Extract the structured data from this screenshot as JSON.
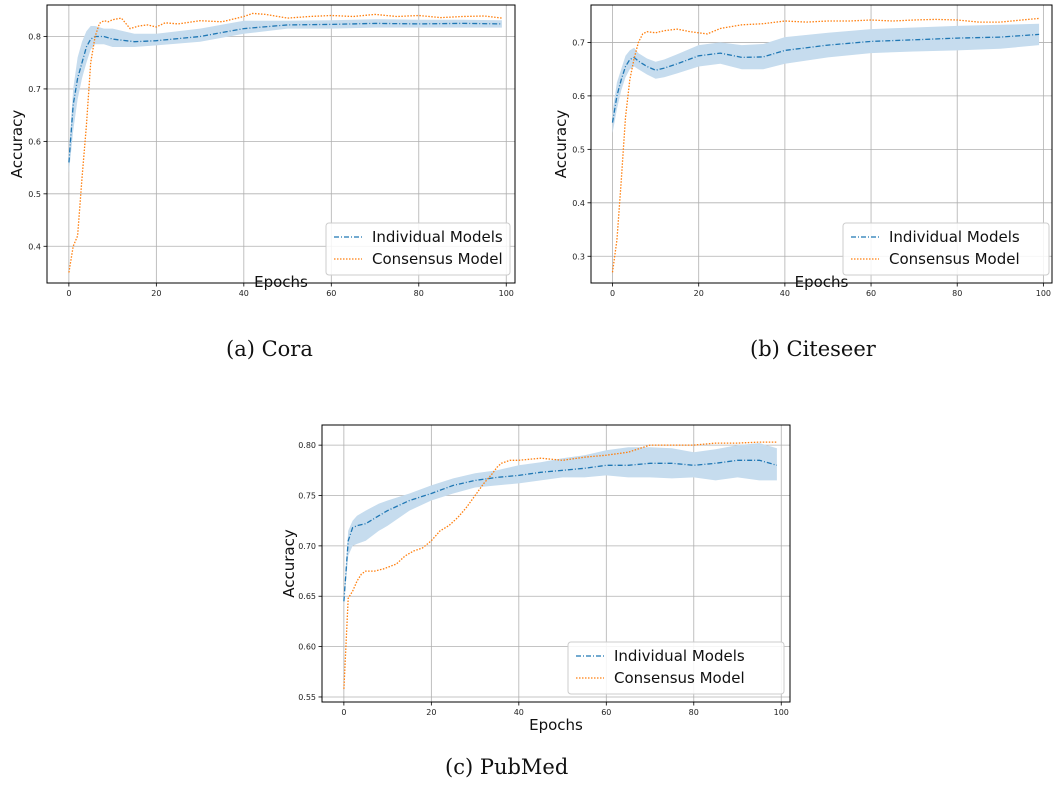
{
  "captions": {
    "cora": "(a) Cora",
    "citeseer": "(b) Citeseer",
    "pubmed": "(c) PubMed"
  },
  "colors": {
    "individual": "#1f77b4",
    "consensus": "#ff7f0e",
    "band": "#c6dcee",
    "grid": "#b0b0b0",
    "axis": "#000000"
  },
  "chart_data": [
    {
      "type": "line",
      "title": "",
      "xlabel": "Epochs",
      "ylabel": "Accuracy",
      "xlim": [
        -5,
        102
      ],
      "ylim": [
        0.33,
        0.86
      ],
      "xticks": [
        0,
        20,
        40,
        60,
        80,
        100
      ],
      "yticks": [
        0.4,
        0.5,
        0.6,
        0.7,
        0.8
      ],
      "ytick_labels": [
        "0.4",
        "0.5",
        "0.6",
        "0.7",
        "0.8"
      ],
      "grid": true,
      "legend": "lower-right",
      "series": [
        {
          "name": "Individual Models",
          "style": "dashdot",
          "points": [
            [
              0,
              0.56
            ],
            [
              1,
              0.67
            ],
            [
              2,
              0.72
            ],
            [
              3,
              0.75
            ],
            [
              4,
              0.78
            ],
            [
              5,
              0.795
            ],
            [
              6,
              0.8
            ],
            [
              8,
              0.8
            ],
            [
              10,
              0.795
            ],
            [
              15,
              0.79
            ],
            [
              20,
              0.792
            ],
            [
              30,
              0.8
            ],
            [
              40,
              0.815
            ],
            [
              50,
              0.822
            ],
            [
              60,
              0.823
            ],
            [
              70,
              0.825
            ],
            [
              80,
              0.824
            ],
            [
              90,
              0.825
            ],
            [
              99,
              0.824
            ]
          ],
          "band": [
            [
              0,
              0.54,
              0.58
            ],
            [
              1,
              0.62,
              0.7
            ],
            [
              2,
              0.68,
              0.76
            ],
            [
              3,
              0.72,
              0.79
            ],
            [
              4,
              0.75,
              0.81
            ],
            [
              5,
              0.775,
              0.82
            ],
            [
              6,
              0.785,
              0.82
            ],
            [
              8,
              0.785,
              0.815
            ],
            [
              10,
              0.78,
              0.815
            ],
            [
              15,
              0.78,
              0.805
            ],
            [
              20,
              0.783,
              0.805
            ],
            [
              30,
              0.79,
              0.815
            ],
            [
              40,
              0.805,
              0.83
            ],
            [
              50,
              0.815,
              0.83
            ],
            [
              60,
              0.815,
              0.831
            ],
            [
              70,
              0.817,
              0.833
            ],
            [
              80,
              0.817,
              0.832
            ],
            [
              90,
              0.817,
              0.832
            ],
            [
              99,
              0.817,
              0.831
            ]
          ]
        },
        {
          "name": "Consensus Model",
          "style": "dotted",
          "points": [
            [
              0,
              0.35
            ],
            [
              1,
              0.4
            ],
            [
              2,
              0.42
            ],
            [
              3,
              0.53
            ],
            [
              4,
              0.63
            ],
            [
              5,
              0.75
            ],
            [
              6,
              0.8
            ],
            [
              7,
              0.825
            ],
            [
              8,
              0.83
            ],
            [
              9,
              0.828
            ],
            [
              10,
              0.832
            ],
            [
              12,
              0.835
            ],
            [
              14,
              0.815
            ],
            [
              16,
              0.82
            ],
            [
              18,
              0.822
            ],
            [
              20,
              0.818
            ],
            [
              22,
              0.826
            ],
            [
              25,
              0.824
            ],
            [
              30,
              0.83
            ],
            [
              35,
              0.828
            ],
            [
              40,
              0.838
            ],
            [
              42,
              0.844
            ],
            [
              45,
              0.842
            ],
            [
              50,
              0.835
            ],
            [
              55,
              0.838
            ],
            [
              60,
              0.84
            ],
            [
              65,
              0.838
            ],
            [
              70,
              0.842
            ],
            [
              75,
              0.838
            ],
            [
              80,
              0.84
            ],
            [
              85,
              0.836
            ],
            [
              90,
              0.838
            ],
            [
              95,
              0.839
            ],
            [
              99,
              0.835
            ]
          ]
        }
      ]
    },
    {
      "type": "line",
      "title": "",
      "xlabel": "Epochs",
      "ylabel": "Accuracy",
      "xlim": [
        -5,
        102
      ],
      "ylim": [
        0.25,
        0.77
      ],
      "xticks": [
        0,
        20,
        40,
        60,
        80,
        100
      ],
      "yticks": [
        0.3,
        0.4,
        0.5,
        0.6,
        0.7
      ],
      "ytick_labels": [
        "0.3",
        "0.4",
        "0.5",
        "0.6",
        "0.7"
      ],
      "grid": true,
      "legend": "lower-right",
      "series": [
        {
          "name": "Individual Models",
          "style": "dashdot",
          "points": [
            [
              0,
              0.55
            ],
            [
              1,
              0.6
            ],
            [
              2,
              0.63
            ],
            [
              3,
              0.655
            ],
            [
              4,
              0.668
            ],
            [
              5,
              0.672
            ],
            [
              6,
              0.665
            ],
            [
              8,
              0.655
            ],
            [
              10,
              0.648
            ],
            [
              12,
              0.652
            ],
            [
              15,
              0.66
            ],
            [
              20,
              0.675
            ],
            [
              25,
              0.68
            ],
            [
              30,
              0.672
            ],
            [
              35,
              0.673
            ],
            [
              40,
              0.685
            ],
            [
              50,
              0.695
            ],
            [
              60,
              0.702
            ],
            [
              70,
              0.705
            ],
            [
              80,
              0.708
            ],
            [
              90,
              0.71
            ],
            [
              99,
              0.715
            ]
          ],
          "band": [
            [
              0,
              0.53,
              0.57
            ],
            [
              1,
              0.575,
              0.625
            ],
            [
              2,
              0.61,
              0.65
            ],
            [
              3,
              0.635,
              0.675
            ],
            [
              4,
              0.65,
              0.685
            ],
            [
              5,
              0.655,
              0.69
            ],
            [
              6,
              0.65,
              0.68
            ],
            [
              8,
              0.64,
              0.67
            ],
            [
              10,
              0.632,
              0.664
            ],
            [
              12,
              0.635,
              0.668
            ],
            [
              15,
              0.642,
              0.678
            ],
            [
              20,
              0.655,
              0.695
            ],
            [
              25,
              0.66,
              0.7
            ],
            [
              30,
              0.65,
              0.695
            ],
            [
              35,
              0.65,
              0.697
            ],
            [
              40,
              0.66,
              0.71
            ],
            [
              50,
              0.672,
              0.718
            ],
            [
              60,
              0.68,
              0.725
            ],
            [
              70,
              0.683,
              0.728
            ],
            [
              80,
              0.685,
              0.731
            ],
            [
              90,
              0.688,
              0.733
            ],
            [
              99,
              0.695,
              0.735
            ]
          ]
        },
        {
          "name": "Consensus Model",
          "style": "dotted",
          "points": [
            [
              0,
              0.27
            ],
            [
              1,
              0.33
            ],
            [
              2,
              0.44
            ],
            [
              3,
              0.56
            ],
            [
              4,
              0.63
            ],
            [
              5,
              0.67
            ],
            [
              6,
              0.7
            ],
            [
              7,
              0.716
            ],
            [
              8,
              0.72
            ],
            [
              10,
              0.718
            ],
            [
              12,
              0.722
            ],
            [
              15,
              0.725
            ],
            [
              18,
              0.72
            ],
            [
              20,
              0.718
            ],
            [
              22,
              0.716
            ],
            [
              25,
              0.726
            ],
            [
              30,
              0.733
            ],
            [
              35,
              0.735
            ],
            [
              40,
              0.74
            ],
            [
              45,
              0.738
            ],
            [
              50,
              0.74
            ],
            [
              55,
              0.74
            ],
            [
              60,
              0.742
            ],
            [
              65,
              0.74
            ],
            [
              70,
              0.742
            ],
            [
              75,
              0.743
            ],
            [
              80,
              0.742
            ],
            [
              85,
              0.738
            ],
            [
              90,
              0.738
            ],
            [
              95,
              0.742
            ],
            [
              99,
              0.745
            ]
          ]
        }
      ]
    },
    {
      "type": "line",
      "title": "",
      "xlabel": "Epochs",
      "ylabel": "Accuracy",
      "xlim": [
        -5,
        102
      ],
      "ylim": [
        0.545,
        0.82
      ],
      "xticks": [
        0,
        20,
        40,
        60,
        80,
        100
      ],
      "yticks": [
        0.55,
        0.6,
        0.65,
        0.7,
        0.75,
        0.8
      ],
      "ytick_labels": [
        "0.55",
        "0.60",
        "0.65",
        "0.70",
        "0.75",
        "0.80"
      ],
      "grid": true,
      "legend": "lower-right",
      "series": [
        {
          "name": "Individual Models",
          "style": "dashdot",
          "points": [
            [
              0,
              0.645
            ],
            [
              1,
              0.705
            ],
            [
              2,
              0.718
            ],
            [
              3,
              0.72
            ],
            [
              5,
              0.722
            ],
            [
              8,
              0.73
            ],
            [
              10,
              0.735
            ],
            [
              15,
              0.745
            ],
            [
              20,
              0.752
            ],
            [
              25,
              0.76
            ],
            [
              30,
              0.765
            ],
            [
              35,
              0.768
            ],
            [
              40,
              0.77
            ],
            [
              45,
              0.773
            ],
            [
              50,
              0.775
            ],
            [
              55,
              0.777
            ],
            [
              60,
              0.78
            ],
            [
              65,
              0.78
            ],
            [
              70,
              0.782
            ],
            [
              75,
              0.782
            ],
            [
              80,
              0.78
            ],
            [
              85,
              0.782
            ],
            [
              90,
              0.785
            ],
            [
              95,
              0.785
            ],
            [
              99,
              0.78
            ]
          ],
          "band": [
            [
              0,
              0.64,
              0.65
            ],
            [
              1,
              0.69,
              0.715
            ],
            [
              2,
              0.7,
              0.725
            ],
            [
              3,
              0.702,
              0.73
            ],
            [
              5,
              0.705,
              0.735
            ],
            [
              8,
              0.715,
              0.742
            ],
            [
              10,
              0.72,
              0.745
            ],
            [
              15,
              0.735,
              0.752
            ],
            [
              20,
              0.745,
              0.76
            ],
            [
              25,
              0.752,
              0.767
            ],
            [
              30,
              0.758,
              0.772
            ],
            [
              35,
              0.76,
              0.775
            ],
            [
              40,
              0.762,
              0.78
            ],
            [
              45,
              0.765,
              0.783
            ],
            [
              50,
              0.768,
              0.787
            ],
            [
              55,
              0.768,
              0.79
            ],
            [
              60,
              0.77,
              0.795
            ],
            [
              65,
              0.768,
              0.798
            ],
            [
              70,
              0.768,
              0.798
            ],
            [
              75,
              0.767,
              0.797
            ],
            [
              80,
              0.768,
              0.793
            ],
            [
              85,
              0.765,
              0.796
            ],
            [
              90,
              0.768,
              0.8
            ],
            [
              95,
              0.765,
              0.802
            ],
            [
              99,
              0.765,
              0.797
            ]
          ]
        },
        {
          "name": "Consensus Model",
          "style": "dotted",
          "points": [
            [
              0,
              0.558
            ],
            [
              1,
              0.648
            ],
            [
              2,
              0.655
            ],
            [
              3,
              0.665
            ],
            [
              4,
              0.672
            ],
            [
              5,
              0.675
            ],
            [
              7,
              0.675
            ],
            [
              9,
              0.677
            ],
            [
              12,
              0.682
            ],
            [
              14,
              0.69
            ],
            [
              16,
              0.695
            ],
            [
              18,
              0.698
            ],
            [
              20,
              0.705
            ],
            [
              22,
              0.715
            ],
            [
              24,
              0.72
            ],
            [
              26,
              0.728
            ],
            [
              28,
              0.738
            ],
            [
              30,
              0.75
            ],
            [
              32,
              0.762
            ],
            [
              34,
              0.772
            ],
            [
              35,
              0.778
            ],
            [
              36,
              0.782
            ],
            [
              38,
              0.785
            ],
            [
              40,
              0.785
            ],
            [
              45,
              0.787
            ],
            [
              50,
              0.785
            ],
            [
              55,
              0.788
            ],
            [
              60,
              0.79
            ],
            [
              65,
              0.793
            ],
            [
              70,
              0.8
            ],
            [
              75,
              0.8
            ],
            [
              80,
              0.8
            ],
            [
              85,
              0.802
            ],
            [
              90,
              0.802
            ],
            [
              95,
              0.803
            ],
            [
              99,
              0.803
            ]
          ]
        }
      ]
    }
  ]
}
